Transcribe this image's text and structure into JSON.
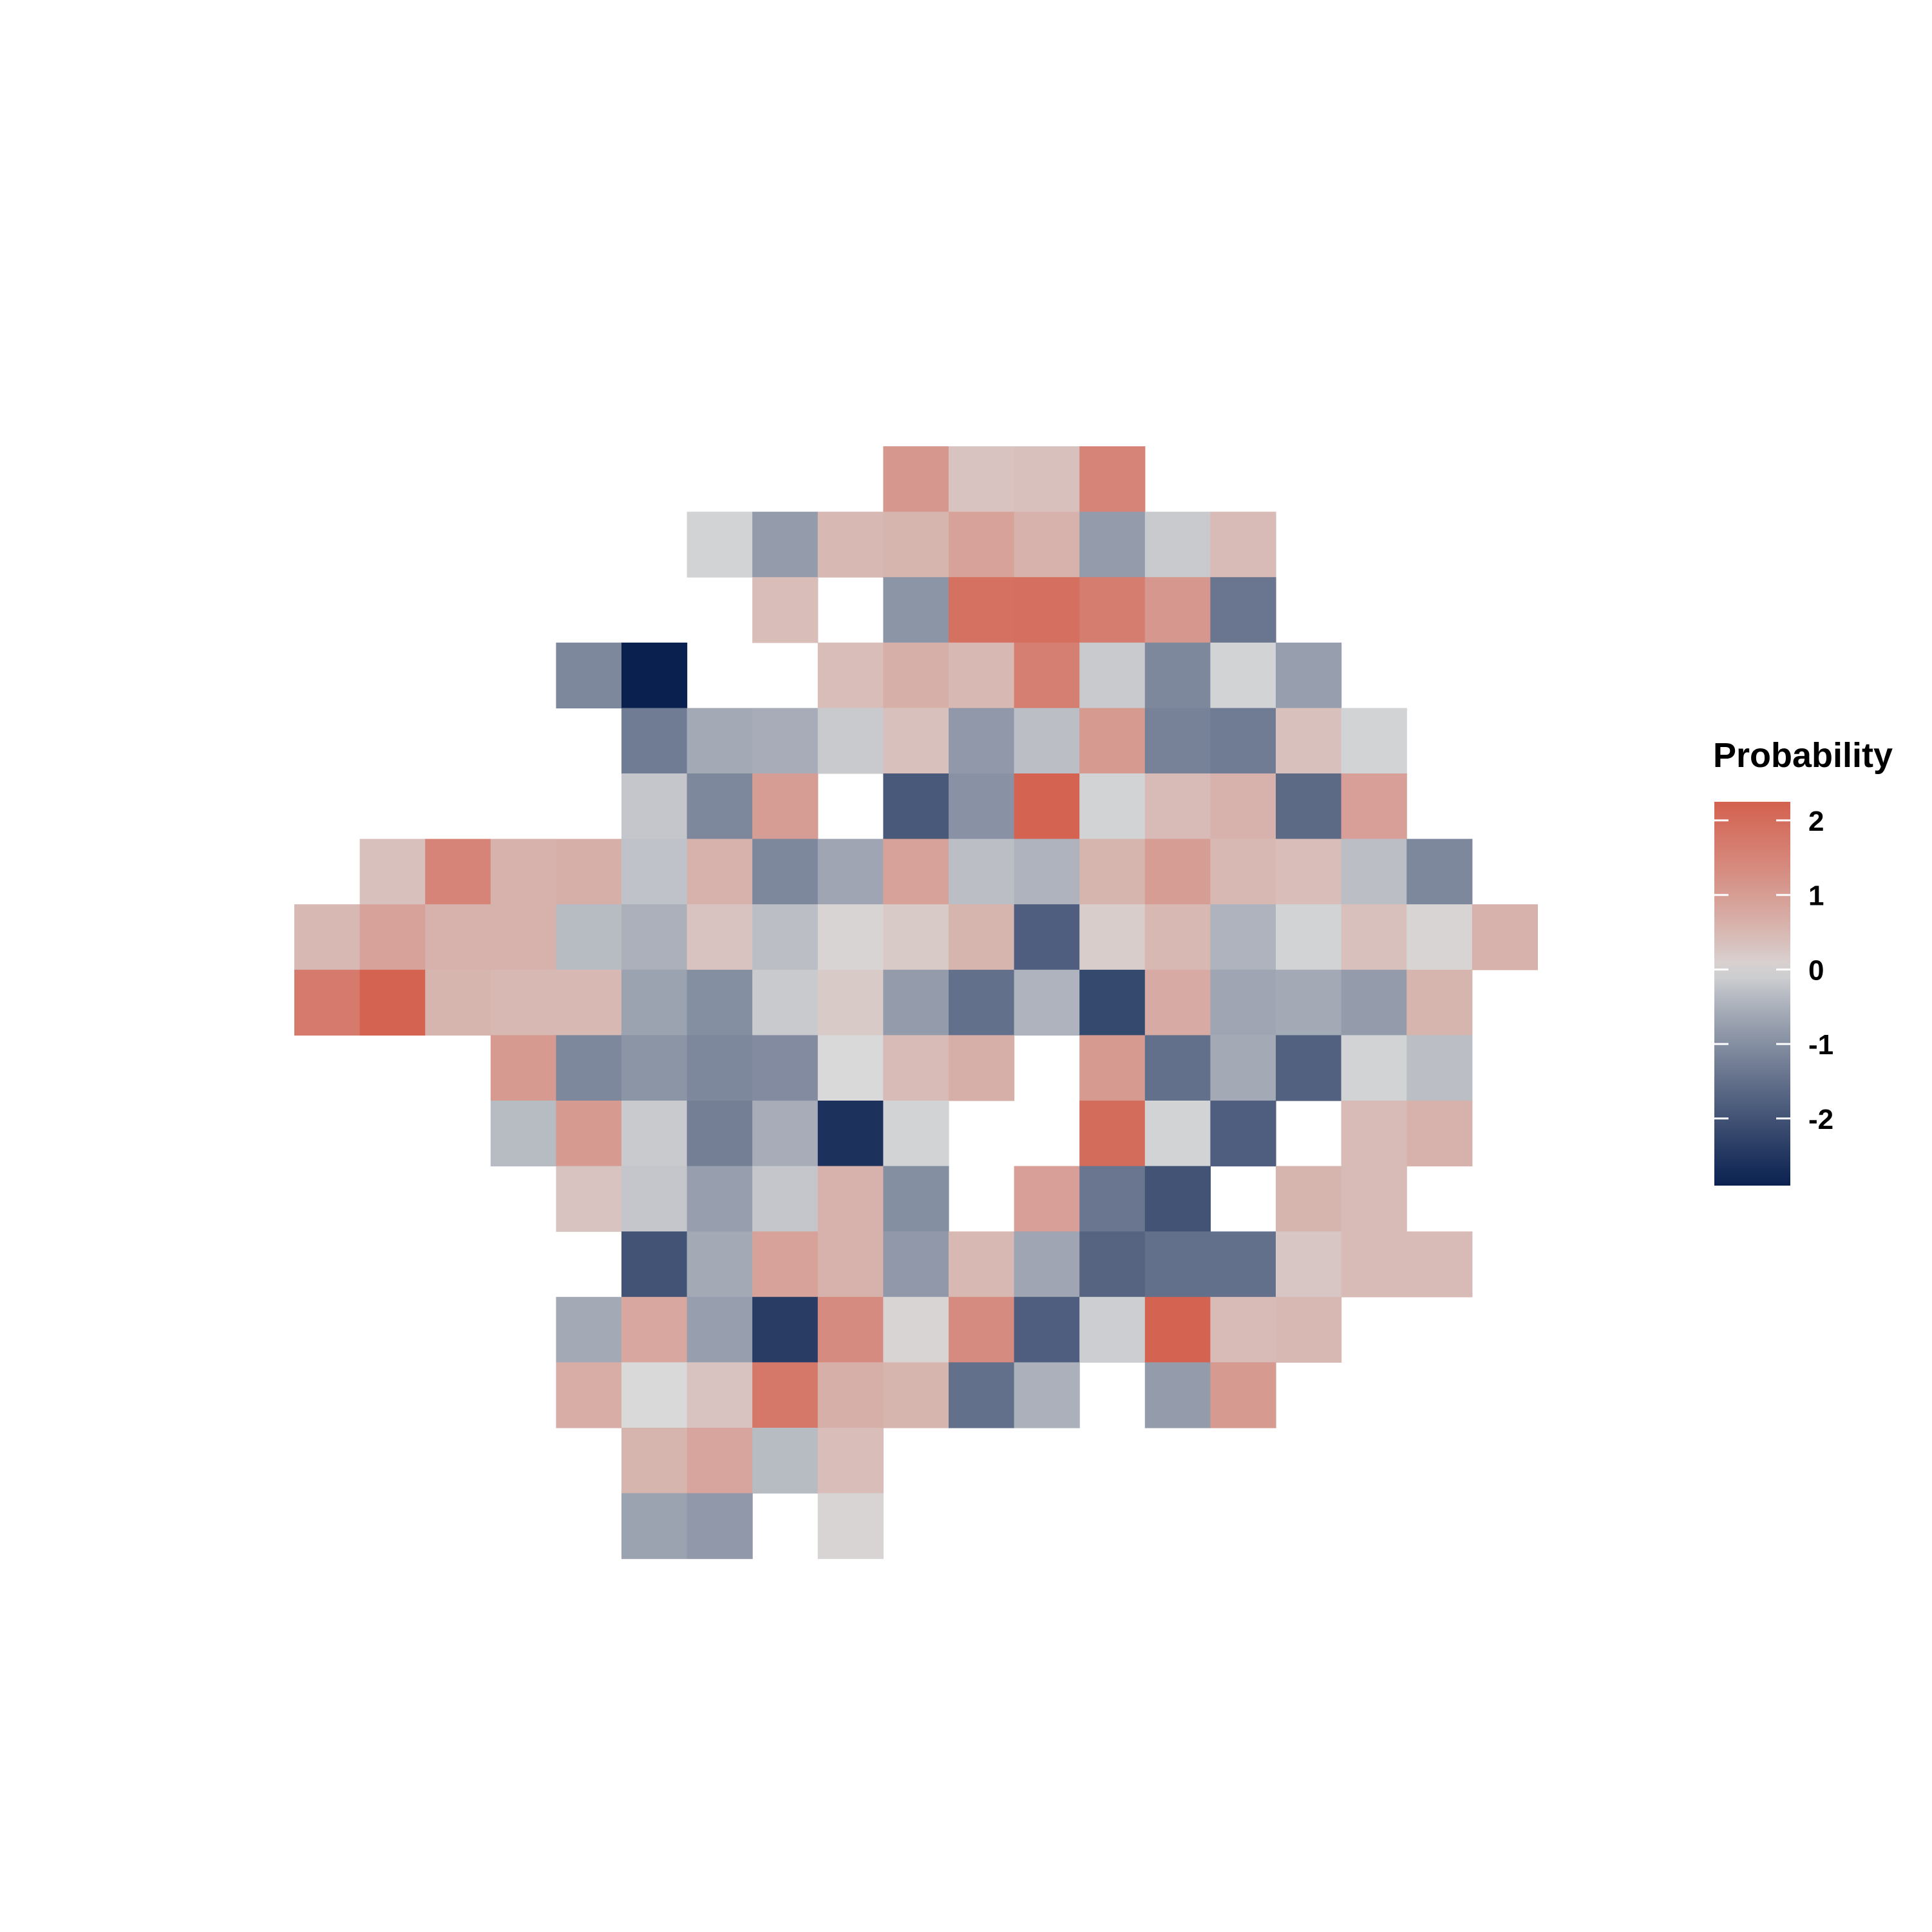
{
  "chart_data": {
    "type": "heatmap",
    "title": "",
    "xlabel": "",
    "ylabel": "",
    "axes_visible": false,
    "grid": false,
    "legend": {
      "title": "Probability",
      "placement": "right",
      "ticks": [
        2,
        1,
        0,
        -1,
        -2
      ],
      "tick_labels": [
        "2",
        "1",
        "0",
        "-1",
        "-2"
      ],
      "range": [
        -2.9,
        2.25
      ]
    },
    "color_scale": {
      "low": "#0a2150",
      "mid": "#d9d9d9",
      "high": "#d4614f",
      "domain": [
        -2.9,
        0,
        2.25
      ]
    },
    "x_range": [
      0,
      18
    ],
    "y_range": [
      0,
      17
    ],
    "cells": [
      {
        "x": 9,
        "y": 0,
        "v": 1.1
      },
      {
        "x": 10,
        "y": 0,
        "v": 0.3
      },
      {
        "x": 11,
        "y": 0,
        "v": 0.35
      },
      {
        "x": 12,
        "y": 0,
        "v": 1.5
      },
      {
        "x": 6,
        "y": 1,
        "v": -0.05
      },
      {
        "x": 7,
        "y": 1,
        "v": -0.8
      },
      {
        "x": 8,
        "y": 1,
        "v": 0.5
      },
      {
        "x": 9,
        "y": 1,
        "v": 0.55
      },
      {
        "x": 10,
        "y": 1,
        "v": 0.9
      },
      {
        "x": 11,
        "y": 1,
        "v": 0.6
      },
      {
        "x": 12,
        "y": 1,
        "v": -0.8
      },
      {
        "x": 13,
        "y": 1,
        "v": -0.15
      },
      {
        "x": 14,
        "y": 1,
        "v": 0.45
      },
      {
        "x": 7,
        "y": 2,
        "v": 0.4
      },
      {
        "x": 9,
        "y": 2,
        "v": -0.9
      },
      {
        "x": 10,
        "y": 2,
        "v": 1.9
      },
      {
        "x": 11,
        "y": 2,
        "v": 1.95
      },
      {
        "x": 12,
        "y": 2,
        "v": 1.65
      },
      {
        "x": 13,
        "y": 2,
        "v": 1.1
      },
      {
        "x": 14,
        "y": 2,
        "v": -1.4
      },
      {
        "x": 4,
        "y": 3,
        "v": -1.1
      },
      {
        "x": 5,
        "y": 3,
        "v": -2.9
      },
      {
        "x": 8,
        "y": 3,
        "v": 0.4
      },
      {
        "x": 9,
        "y": 3,
        "v": 0.65
      },
      {
        "x": 10,
        "y": 3,
        "v": 0.5
      },
      {
        "x": 11,
        "y": 3,
        "v": 1.6
      },
      {
        "x": 12,
        "y": 3,
        "v": -0.15
      },
      {
        "x": 13,
        "y": 3,
        "v": -1.1
      },
      {
        "x": 14,
        "y": 3,
        "v": -0.05
      },
      {
        "x": 15,
        "y": 3,
        "v": -0.75
      },
      {
        "x": 5,
        "y": 4,
        "v": -1.3
      },
      {
        "x": 6,
        "y": 4,
        "v": -0.6
      },
      {
        "x": 7,
        "y": 4,
        "v": -0.55
      },
      {
        "x": 8,
        "y": 4,
        "v": -0.15
      },
      {
        "x": 9,
        "y": 4,
        "v": 0.35
      },
      {
        "x": 10,
        "y": 4,
        "v": -0.85
      },
      {
        "x": 11,
        "y": 4,
        "v": -0.3
      },
      {
        "x": 12,
        "y": 4,
        "v": 1.05
      },
      {
        "x": 13,
        "y": 4,
        "v": -1.2
      },
      {
        "x": 14,
        "y": 4,
        "v": -1.3
      },
      {
        "x": 15,
        "y": 4,
        "v": 0.35
      },
      {
        "x": 16,
        "y": 4,
        "v": -0.05
      },
      {
        "x": 5,
        "y": 5,
        "v": -0.2
      },
      {
        "x": 6,
        "y": 5,
        "v": -1.1
      },
      {
        "x": 7,
        "y": 5,
        "v": 1.0
      },
      {
        "x": 9,
        "y": 5,
        "v": -1.9
      },
      {
        "x": 10,
        "y": 5,
        "v": -0.95
      },
      {
        "x": 11,
        "y": 5,
        "v": 2.2
      },
      {
        "x": 12,
        "y": 5,
        "v": -0.05
      },
      {
        "x": 13,
        "y": 5,
        "v": 0.45
      },
      {
        "x": 14,
        "y": 5,
        "v": 0.6
      },
      {
        "x": 15,
        "y": 5,
        "v": -1.6
      },
      {
        "x": 16,
        "y": 5,
        "v": 0.95
      },
      {
        "x": 1,
        "y": 6,
        "v": 0.35
      },
      {
        "x": 2,
        "y": 6,
        "v": 1.5
      },
      {
        "x": 3,
        "y": 6,
        "v": 0.6
      },
      {
        "x": 4,
        "y": 6,
        "v": 0.65
      },
      {
        "x": 5,
        "y": 6,
        "v": -0.25
      },
      {
        "x": 6,
        "y": 6,
        "v": 0.6
      },
      {
        "x": 7,
        "y": 6,
        "v": -1.1
      },
      {
        "x": 8,
        "y": 6,
        "v": -0.65
      },
      {
        "x": 9,
        "y": 6,
        "v": 0.9
      },
      {
        "x": 10,
        "y": 6,
        "v": -0.3
      },
      {
        "x": 11,
        "y": 6,
        "v": -0.45
      },
      {
        "x": 12,
        "y": 6,
        "v": 0.55
      },
      {
        "x": 13,
        "y": 6,
        "v": 1.0
      },
      {
        "x": 14,
        "y": 6,
        "v": 0.5
      },
      {
        "x": 15,
        "y": 6,
        "v": 0.4
      },
      {
        "x": 16,
        "y": 6,
        "v": -0.3
      },
      {
        "x": 17,
        "y": 6,
        "v": -1.1
      },
      {
        "x": 0,
        "y": 7,
        "v": 0.5
      },
      {
        "x": 1,
        "y": 7,
        "v": 0.9
      },
      {
        "x": 2,
        "y": 7,
        "v": 0.6
      },
      {
        "x": 3,
        "y": 7,
        "v": 0.6
      },
      {
        "x": 4,
        "y": 7,
        "v": -0.35
      },
      {
        "x": 5,
        "y": 7,
        "v": -0.5
      },
      {
        "x": 6,
        "y": 7,
        "v": 0.3
      },
      {
        "x": 7,
        "y": 7,
        "v": -0.3
      },
      {
        "x": 8,
        "y": 7,
        "v": 0.05
      },
      {
        "x": 9,
        "y": 7,
        "v": 0.2
      },
      {
        "x": 10,
        "y": 7,
        "v": 0.55
      },
      {
        "x": 11,
        "y": 7,
        "v": -1.8
      },
      {
        "x": 12,
        "y": 7,
        "v": 0.15
      },
      {
        "x": 13,
        "y": 7,
        "v": 0.5
      },
      {
        "x": 14,
        "y": 7,
        "v": -0.45
      },
      {
        "x": 15,
        "y": 7,
        "v": -0.05
      },
      {
        "x": 16,
        "y": 7,
        "v": 0.35
      },
      {
        "x": 17,
        "y": 7,
        "v": 0.05
      },
      {
        "x": 18,
        "y": 7,
        "v": 0.6
      },
      {
        "x": 0,
        "y": 8,
        "v": 1.7
      },
      {
        "x": 1,
        "y": 8,
        "v": 2.2
      },
      {
        "x": 2,
        "y": 8,
        "v": 0.55
      },
      {
        "x": 3,
        "y": 8,
        "v": 0.5
      },
      {
        "x": 4,
        "y": 8,
        "v": 0.5
      },
      {
        "x": 5,
        "y": 8,
        "v": -0.7
      },
      {
        "x": 6,
        "y": 8,
        "v": -1.0
      },
      {
        "x": 7,
        "y": 8,
        "v": -0.15
      },
      {
        "x": 8,
        "y": 8,
        "v": 0.2
      },
      {
        "x": 9,
        "y": 8,
        "v": -0.8
      },
      {
        "x": 10,
        "y": 8,
        "v": -1.5
      },
      {
        "x": 11,
        "y": 8,
        "v": -0.45
      },
      {
        "x": 12,
        "y": 8,
        "v": -2.2
      },
      {
        "x": 13,
        "y": 8,
        "v": 0.75
      },
      {
        "x": 14,
        "y": 8,
        "v": -0.65
      },
      {
        "x": 15,
        "y": 8,
        "v": -0.6
      },
      {
        "x": 16,
        "y": 8,
        "v": -0.8
      },
      {
        "x": 17,
        "y": 8,
        "v": 0.55
      },
      {
        "x": 3,
        "y": 9,
        "v": 1.05
      },
      {
        "x": 4,
        "y": 9,
        "v": -1.1
      },
      {
        "x": 5,
        "y": 9,
        "v": -0.9
      },
      {
        "x": 6,
        "y": 9,
        "v": -1.1
      },
      {
        "x": 7,
        "y": 9,
        "v": -1.05
      },
      {
        "x": 8,
        "y": 9,
        "v": 0.0
      },
      {
        "x": 9,
        "y": 9,
        "v": 0.45
      },
      {
        "x": 10,
        "y": 9,
        "v": 0.65
      },
      {
        "x": 12,
        "y": 9,
        "v": 1.05
      },
      {
        "x": 13,
        "y": 9,
        "v": -1.5
      },
      {
        "x": 14,
        "y": 9,
        "v": -0.6
      },
      {
        "x": 15,
        "y": 9,
        "v": -1.75
      },
      {
        "x": 16,
        "y": 9,
        "v": -0.05
      },
      {
        "x": 17,
        "y": 9,
        "v": -0.3
      },
      {
        "x": 3,
        "y": 10,
        "v": -0.35
      },
      {
        "x": 4,
        "y": 10,
        "v": 1.05
      },
      {
        "x": 5,
        "y": 10,
        "v": -0.15
      },
      {
        "x": 6,
        "y": 10,
        "v": -1.25
      },
      {
        "x": 7,
        "y": 10,
        "v": -0.55
      },
      {
        "x": 8,
        "y": 10,
        "v": -2.6
      },
      {
        "x": 9,
        "y": 10,
        "v": -0.05
      },
      {
        "x": 12,
        "y": 10,
        "v": 2.0
      },
      {
        "x": 13,
        "y": 10,
        "v": -0.05
      },
      {
        "x": 14,
        "y": 10,
        "v": -1.8
      },
      {
        "x": 16,
        "y": 10,
        "v": 0.45
      },
      {
        "x": 17,
        "y": 10,
        "v": 0.6
      },
      {
        "x": 4,
        "y": 11,
        "v": 0.3
      },
      {
        "x": 5,
        "y": 11,
        "v": -0.2
      },
      {
        "x": 6,
        "y": 11,
        "v": -0.75
      },
      {
        "x": 7,
        "y": 11,
        "v": -0.2
      },
      {
        "x": 8,
        "y": 11,
        "v": 0.6
      },
      {
        "x": 9,
        "y": 11,
        "v": -1.0
      },
      {
        "x": 11,
        "y": 11,
        "v": 0.95
      },
      {
        "x": 12,
        "y": 11,
        "v": -1.4
      },
      {
        "x": 13,
        "y": 11,
        "v": -2.0
      },
      {
        "x": 15,
        "y": 11,
        "v": 0.55
      },
      {
        "x": 16,
        "y": 11,
        "v": 0.45
      },
      {
        "x": 5,
        "y": 12,
        "v": -2.0
      },
      {
        "x": 6,
        "y": 12,
        "v": -0.6
      },
      {
        "x": 7,
        "y": 12,
        "v": 0.9
      },
      {
        "x": 8,
        "y": 12,
        "v": 0.6
      },
      {
        "x": 9,
        "y": 12,
        "v": -0.85
      },
      {
        "x": 10,
        "y": 12,
        "v": 0.5
      },
      {
        "x": 11,
        "y": 12,
        "v": -0.65
      },
      {
        "x": 12,
        "y": 12,
        "v": -1.7
      },
      {
        "x": 13,
        "y": 12,
        "v": -1.5
      },
      {
        "x": 14,
        "y": 12,
        "v": -1.5
      },
      {
        "x": 15,
        "y": 12,
        "v": 0.25
      },
      {
        "x": 16,
        "y": 12,
        "v": 0.45
      },
      {
        "x": 17,
        "y": 12,
        "v": 0.45
      },
      {
        "x": 4,
        "y": 13,
        "v": -0.6
      },
      {
        "x": 5,
        "y": 13,
        "v": 0.8
      },
      {
        "x": 6,
        "y": 13,
        "v": -0.75
      },
      {
        "x": 7,
        "y": 13,
        "v": -2.4
      },
      {
        "x": 8,
        "y": 13,
        "v": 1.35
      },
      {
        "x": 9,
        "y": 13,
        "v": 0.05
      },
      {
        "x": 10,
        "y": 13,
        "v": 1.35
      },
      {
        "x": 11,
        "y": 13,
        "v": -1.8
      },
      {
        "x": 12,
        "y": 13,
        "v": -0.1
      },
      {
        "x": 13,
        "y": 13,
        "v": 2.2
      },
      {
        "x": 14,
        "y": 13,
        "v": 0.45
      },
      {
        "x": 15,
        "y": 13,
        "v": 0.5
      },
      {
        "x": 4,
        "y": 14,
        "v": 0.7
      },
      {
        "x": 5,
        "y": 14,
        "v": 0.0
      },
      {
        "x": 6,
        "y": 14,
        "v": 0.3
      },
      {
        "x": 7,
        "y": 14,
        "v": 1.75
      },
      {
        "x": 8,
        "y": 14,
        "v": 0.65
      },
      {
        "x": 9,
        "y": 14,
        "v": 0.55
      },
      {
        "x": 10,
        "y": 14,
        "v": -1.5
      },
      {
        "x": 11,
        "y": 14,
        "v": -0.5
      },
      {
        "x": 13,
        "y": 14,
        "v": -0.8
      },
      {
        "x": 14,
        "y": 14,
        "v": 1.05
      },
      {
        "x": 5,
        "y": 15,
        "v": 0.55
      },
      {
        "x": 6,
        "y": 15,
        "v": 0.85
      },
      {
        "x": 7,
        "y": 15,
        "v": -0.35
      },
      {
        "x": 8,
        "y": 15,
        "v": 0.4
      },
      {
        "x": 5,
        "y": 16,
        "v": -0.7
      },
      {
        "x": 6,
        "y": 16,
        "v": -0.85
      },
      {
        "x": 8,
        "y": 16,
        "v": 0.05
      }
    ]
  }
}
